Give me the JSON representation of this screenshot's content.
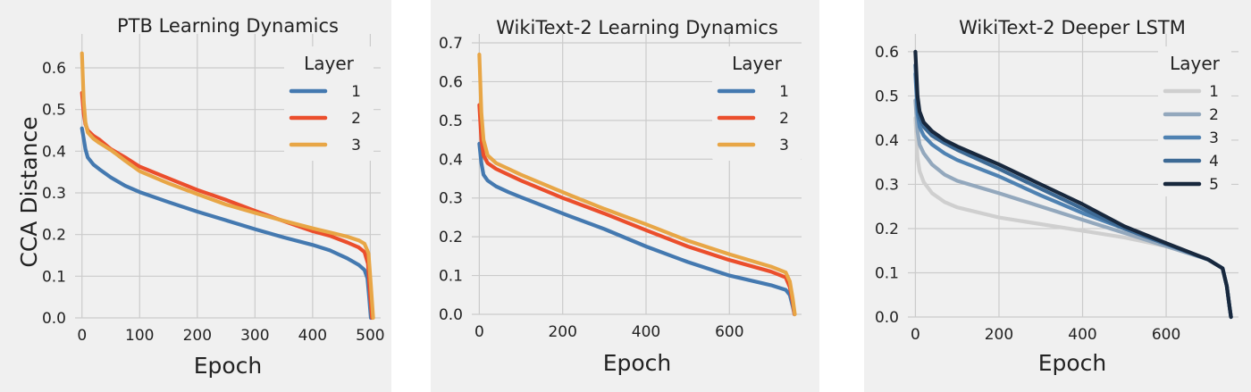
{
  "chart_data": [
    {
      "type": "line",
      "title": "PTB Learning Dynamics",
      "xlabel": "Epoch",
      "ylabel": "CCA Distance",
      "xlim": [
        -12,
        518
      ],
      "ylim": [
        0,
        0.66
      ],
      "xticks": [
        0,
        100,
        200,
        300,
        400,
        500
      ],
      "xtick_labels": [
        "0",
        "100",
        "200",
        "300",
        "400",
        "500"
      ],
      "yticks": [
        0.0,
        0.1,
        0.2,
        0.3,
        0.4,
        0.5,
        0.6
      ],
      "ytick_labels": [
        "0.0",
        "0.1",
        "0.2",
        "0.3",
        "0.4",
        "0.5",
        "0.6"
      ],
      "grid": true,
      "legend": {
        "title": "Layer",
        "position": "top-right"
      },
      "series": [
        {
          "name": "1",
          "color": "#4479b0",
          "points": [
            [
              0,
              0.455
            ],
            [
              3,
              0.43
            ],
            [
              6,
              0.405
            ],
            [
              10,
              0.385
            ],
            [
              20,
              0.368
            ],
            [
              30,
              0.357
            ],
            [
              50,
              0.337
            ],
            [
              75,
              0.317
            ],
            [
              100,
              0.302
            ],
            [
              150,
              0.278
            ],
            [
              200,
              0.255
            ],
            [
              250,
              0.234
            ],
            [
              300,
              0.213
            ],
            [
              350,
              0.193
            ],
            [
              400,
              0.175
            ],
            [
              430,
              0.162
            ],
            [
              460,
              0.143
            ],
            [
              480,
              0.127
            ],
            [
              490,
              0.115
            ],
            [
              495,
              0.095
            ],
            [
              498,
              0.05
            ],
            [
              501,
              0.0
            ]
          ]
        },
        {
          "name": "2",
          "color": "#eb4e2c",
          "points": [
            [
              0,
              0.54
            ],
            [
              3,
              0.49
            ],
            [
              6,
              0.465
            ],
            [
              10,
              0.45
            ],
            [
              20,
              0.437
            ],
            [
              30,
              0.428
            ],
            [
              50,
              0.405
            ],
            [
              75,
              0.385
            ],
            [
              100,
              0.363
            ],
            [
              150,
              0.335
            ],
            [
              200,
              0.307
            ],
            [
              250,
              0.283
            ],
            [
              300,
              0.257
            ],
            [
              350,
              0.232
            ],
            [
              400,
              0.208
            ],
            [
              430,
              0.197
            ],
            [
              460,
              0.181
            ],
            [
              480,
              0.169
            ],
            [
              490,
              0.158
            ],
            [
              496,
              0.13
            ],
            [
              500,
              0.05
            ],
            [
              503,
              0.0
            ]
          ]
        },
        {
          "name": "3",
          "color": "#e8a646",
          "points": [
            [
              0,
              0.635
            ],
            [
              3,
              0.52
            ],
            [
              6,
              0.47
            ],
            [
              10,
              0.445
            ],
            [
              20,
              0.43
            ],
            [
              30,
              0.42
            ],
            [
              50,
              0.403
            ],
            [
              75,
              0.377
            ],
            [
              100,
              0.352
            ],
            [
              150,
              0.323
            ],
            [
              200,
              0.297
            ],
            [
              250,
              0.272
            ],
            [
              300,
              0.252
            ],
            [
              350,
              0.233
            ],
            [
              400,
              0.215
            ],
            [
              430,
              0.205
            ],
            [
              460,
              0.195
            ],
            [
              480,
              0.186
            ],
            [
              490,
              0.178
            ],
            [
              497,
              0.155
            ],
            [
              501,
              0.08
            ],
            [
              505,
              0.0
            ]
          ]
        }
      ]
    },
    {
      "type": "line",
      "title": "WikiText-2 Learning Dynamics",
      "xlabel": "Epoch",
      "ylabel": "",
      "xlim": [
        -18,
        773
      ],
      "ylim": [
        0,
        0.7
      ],
      "xticks": [
        0,
        200,
        400,
        600
      ],
      "xtick_labels": [
        "0",
        "200",
        "400",
        "600"
      ],
      "yticks": [
        0.0,
        0.1,
        0.2,
        0.3,
        0.4,
        0.5,
        0.6,
        0.7
      ],
      "ytick_labels": [
        "0.0",
        "0.1",
        "0.2",
        "0.3",
        "0.4",
        "0.5",
        "0.6",
        "0.7"
      ],
      "grid": true,
      "legend": {
        "title": "Layer",
        "position": "top-right"
      },
      "series": [
        {
          "name": "1",
          "color": "#4479b0",
          "points": [
            [
              0,
              0.44
            ],
            [
              5,
              0.39
            ],
            [
              10,
              0.36
            ],
            [
              20,
              0.345
            ],
            [
              40,
              0.33
            ],
            [
              70,
              0.315
            ],
            [
              100,
              0.302
            ],
            [
              200,
              0.26
            ],
            [
              300,
              0.22
            ],
            [
              400,
              0.175
            ],
            [
              500,
              0.135
            ],
            [
              600,
              0.1
            ],
            [
              700,
              0.075
            ],
            [
              735,
              0.063
            ],
            [
              745,
              0.05
            ],
            [
              752,
              0.02
            ],
            [
              756,
              0.0
            ]
          ]
        },
        {
          "name": "2",
          "color": "#eb4e2c",
          "points": [
            [
              0,
              0.54
            ],
            [
              5,
              0.45
            ],
            [
              10,
              0.41
            ],
            [
              20,
              0.39
            ],
            [
              40,
              0.375
            ],
            [
              70,
              0.36
            ],
            [
              100,
              0.345
            ],
            [
              200,
              0.3
            ],
            [
              300,
              0.26
            ],
            [
              400,
              0.217
            ],
            [
              500,
              0.175
            ],
            [
              600,
              0.14
            ],
            [
              700,
              0.11
            ],
            [
              735,
              0.095
            ],
            [
              745,
              0.07
            ],
            [
              752,
              0.03
            ],
            [
              756,
              0.0
            ]
          ]
        },
        {
          "name": "3",
          "color": "#e8a646",
          "points": [
            [
              0,
              0.67
            ],
            [
              5,
              0.52
            ],
            [
              10,
              0.45
            ],
            [
              20,
              0.41
            ],
            [
              40,
              0.39
            ],
            [
              70,
              0.375
            ],
            [
              100,
              0.36
            ],
            [
              200,
              0.315
            ],
            [
              300,
              0.272
            ],
            [
              400,
              0.232
            ],
            [
              500,
              0.19
            ],
            [
              600,
              0.155
            ],
            [
              700,
              0.123
            ],
            [
              735,
              0.108
            ],
            [
              745,
              0.085
            ],
            [
              752,
              0.04
            ],
            [
              757,
              0.0
            ]
          ]
        }
      ]
    },
    {
      "type": "line",
      "title": "WikiText-2 Deeper LSTM",
      "xlabel": "Epoch",
      "ylabel": "",
      "xlim": [
        -18,
        773
      ],
      "ylim": [
        0,
        0.62
      ],
      "xticks": [
        0,
        200,
        400,
        600
      ],
      "xtick_labels": [
        "0",
        "200",
        "400",
        "600"
      ],
      "yticks": [
        0.0,
        0.1,
        0.2,
        0.3,
        0.4,
        0.5,
        0.6
      ],
      "ytick_labels": [
        "0.0",
        "0.1",
        "0.2",
        "0.3",
        "0.4",
        "0.5",
        "0.6"
      ],
      "grid": true,
      "legend": {
        "title": "Layer",
        "position": "top-right"
      },
      "series": [
        {
          "name": "1",
          "color": "#cfcfcf",
          "points": [
            [
              0,
              0.45
            ],
            [
              5,
              0.36
            ],
            [
              10,
              0.33
            ],
            [
              20,
              0.305
            ],
            [
              40,
              0.28
            ],
            [
              70,
              0.26
            ],
            [
              100,
              0.248
            ],
            [
              200,
              0.225
            ],
            [
              300,
              0.21
            ],
            [
              400,
              0.195
            ],
            [
              500,
              0.18
            ],
            [
              600,
              0.16
            ],
            [
              700,
              0.13
            ],
            [
              735,
              0.11
            ],
            [
              745,
              0.07
            ],
            [
              752,
              0.02
            ],
            [
              755,
              0.0
            ]
          ]
        },
        {
          "name": "2",
          "color": "#93a8bd",
          "points": [
            [
              0,
              0.49
            ],
            [
              5,
              0.42
            ],
            [
              10,
              0.39
            ],
            [
              20,
              0.37
            ],
            [
              40,
              0.345
            ],
            [
              70,
              0.322
            ],
            [
              100,
              0.308
            ],
            [
              200,
              0.28
            ],
            [
              300,
              0.25
            ],
            [
              400,
              0.22
            ],
            [
              500,
              0.19
            ],
            [
              600,
              0.16
            ],
            [
              700,
              0.13
            ],
            [
              735,
              0.11
            ],
            [
              745,
              0.07
            ],
            [
              752,
              0.02
            ],
            [
              755,
              0.0
            ]
          ]
        },
        {
          "name": "3",
          "color": "#4f82b2",
          "points": [
            [
              0,
              0.55
            ],
            [
              5,
              0.46
            ],
            [
              10,
              0.43
            ],
            [
              20,
              0.41
            ],
            [
              40,
              0.39
            ],
            [
              70,
              0.37
            ],
            [
              100,
              0.355
            ],
            [
              200,
              0.318
            ],
            [
              300,
              0.275
            ],
            [
              400,
              0.235
            ],
            [
              500,
              0.2
            ],
            [
              600,
              0.165
            ],
            [
              700,
              0.13
            ],
            [
              735,
              0.11
            ],
            [
              745,
              0.07
            ],
            [
              752,
              0.02
            ],
            [
              755,
              0.0
            ]
          ]
        },
        {
          "name": "4",
          "color": "#3d6a95",
          "points": [
            [
              0,
              0.57
            ],
            [
              5,
              0.48
            ],
            [
              10,
              0.45
            ],
            [
              20,
              0.43
            ],
            [
              40,
              0.41
            ],
            [
              70,
              0.393
            ],
            [
              100,
              0.378
            ],
            [
              200,
              0.335
            ],
            [
              300,
              0.29
            ],
            [
              400,
              0.245
            ],
            [
              500,
              0.2
            ],
            [
              600,
              0.165
            ],
            [
              700,
              0.13
            ],
            [
              735,
              0.11
            ],
            [
              745,
              0.07
            ],
            [
              752,
              0.02
            ],
            [
              755,
              0.0
            ]
          ]
        },
        {
          "name": "5",
          "color": "#18283d",
          "points": [
            [
              0,
              0.6
            ],
            [
              5,
              0.5
            ],
            [
              10,
              0.465
            ],
            [
              20,
              0.44
            ],
            [
              40,
              0.42
            ],
            [
              70,
              0.4
            ],
            [
              100,
              0.386
            ],
            [
              200,
              0.345
            ],
            [
              300,
              0.3
            ],
            [
              400,
              0.255
            ],
            [
              500,
              0.205
            ],
            [
              600,
              0.167
            ],
            [
              700,
              0.13
            ],
            [
              735,
              0.11
            ],
            [
              745,
              0.07
            ],
            [
              752,
              0.02
            ],
            [
              755,
              0.0
            ]
          ]
        }
      ]
    }
  ]
}
